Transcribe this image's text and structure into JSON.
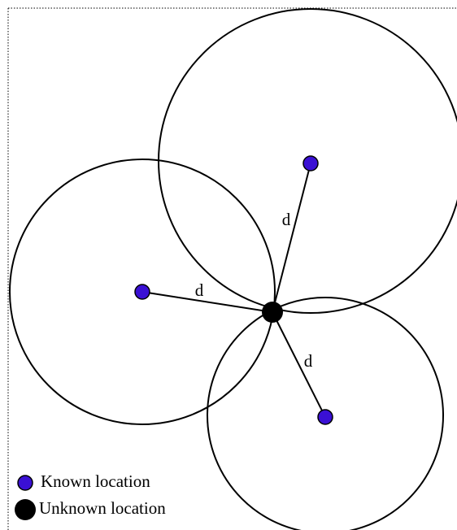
{
  "distance_labels": [
    "d",
    "d",
    "d"
  ],
  "legend": [
    "Known location",
    "Unknown location"
  ]
}
